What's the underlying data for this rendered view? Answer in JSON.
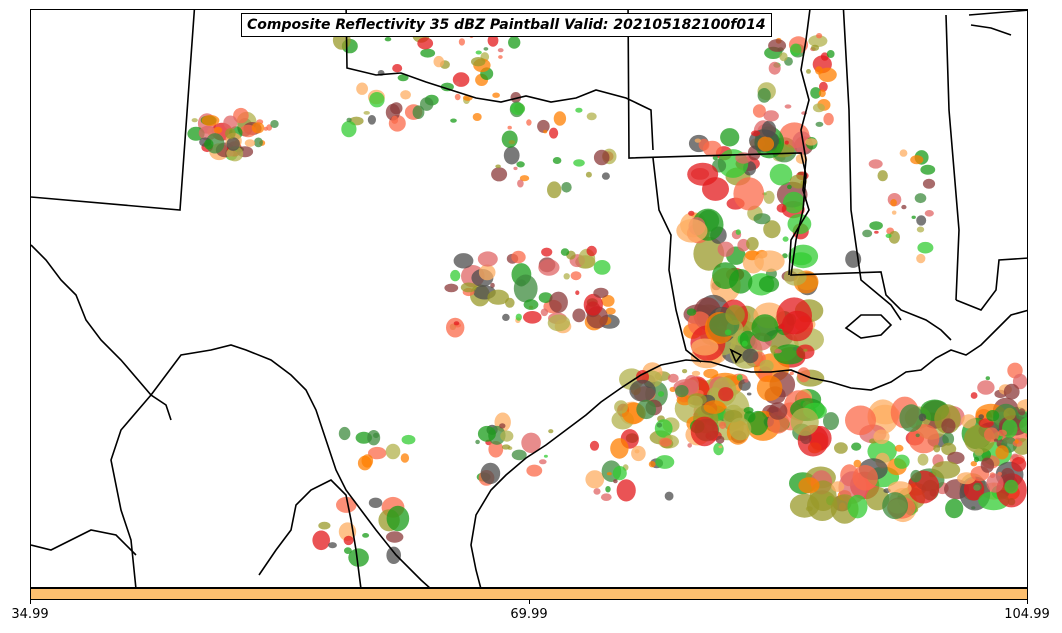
{
  "title": "Composite Reflectivity 35 dBZ Paintball Valid: 202105182100f014",
  "colorbar": {
    "color": "#fdbf6f",
    "ticks": [
      "34.99",
      "69.99",
      "104.99"
    ]
  },
  "member_colors": [
    "#e31a1c",
    "#ff7f00",
    "#33cc33",
    "#1a9c1a",
    "#fb6a4a",
    "#fdae61",
    "#8b3a3a",
    "#9a9a2a",
    "#4c4c4c",
    "#b2b24c",
    "#e06666",
    "#3d8b3d"
  ],
  "icons": {
    "map": "state-boundary-map"
  }
}
